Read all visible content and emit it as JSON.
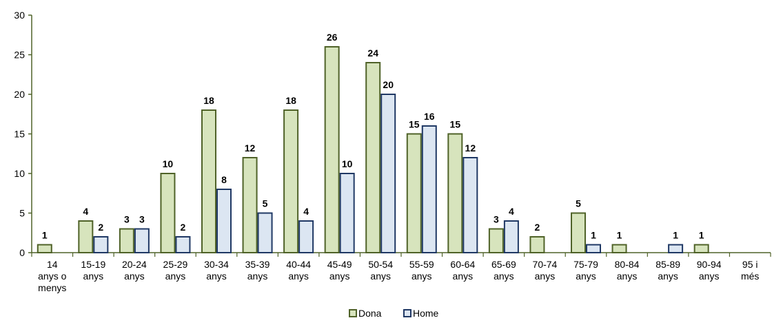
{
  "chart_data": {
    "type": "bar",
    "categories": [
      [
        "14",
        "anys o",
        "menys"
      ],
      [
        "15-19",
        "anys"
      ],
      [
        "20-24",
        "anys"
      ],
      [
        "25-29",
        "anys"
      ],
      [
        "30-34",
        "anys"
      ],
      [
        "35-39",
        "anys"
      ],
      [
        "40-44",
        "anys"
      ],
      [
        "45-49",
        "anys"
      ],
      [
        "50-54",
        "anys"
      ],
      [
        "55-59",
        "anys"
      ],
      [
        "60-64",
        "anys"
      ],
      [
        "65-69",
        "anys"
      ],
      [
        "70-74",
        "anys"
      ],
      [
        "75-79",
        "anys"
      ],
      [
        "80-84",
        "anys"
      ],
      [
        "85-89",
        "anys"
      ],
      [
        "90-94",
        "anys"
      ],
      [
        "95 i",
        "més"
      ]
    ],
    "series": [
      {
        "name": "Dona",
        "values": [
          1,
          4,
          3,
          10,
          18,
          12,
          18,
          26,
          24,
          15,
          15,
          3,
          2,
          5,
          1,
          0,
          1,
          0
        ],
        "fill": "#d7e4bd",
        "stroke": "#4f6228"
      },
      {
        "name": "Home",
        "values": [
          0,
          2,
          3,
          2,
          8,
          5,
          4,
          10,
          20,
          16,
          12,
          4,
          0,
          1,
          0,
          1,
          0,
          0
        ],
        "fill": "#dce6f2",
        "stroke": "#1f3864"
      }
    ],
    "ylim": [
      0,
      30
    ],
    "yticks": [
      0,
      5,
      10,
      15,
      20,
      25,
      30
    ],
    "axis_color": "#4f6228",
    "legend_position": "bottom",
    "grid": false
  }
}
